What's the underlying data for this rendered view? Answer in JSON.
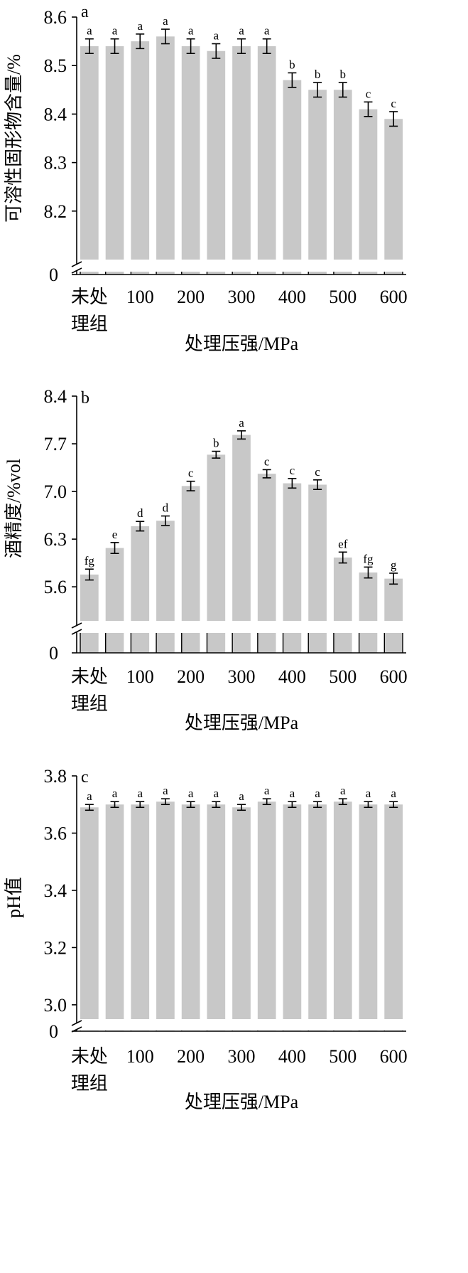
{
  "chart_data": [
    {
      "type": "bar",
      "panel_letter": "a",
      "categories": [
        "未处理组",
        "",
        "100",
        "",
        "200",
        "",
        "300",
        "",
        "400",
        "",
        "500",
        "",
        "600"
      ],
      "category_label_lines": [
        [
          "未处",
          "理组"
        ],
        [],
        [
          "100"
        ],
        [],
        [
          "200"
        ],
        [],
        [
          "300"
        ],
        [],
        [
          "400"
        ],
        [],
        [
          "500"
        ],
        [],
        [
          "600"
        ]
      ],
      "values": [
        8.54,
        8.54,
        8.55,
        8.56,
        8.54,
        8.53,
        8.54,
        8.54,
        8.47,
        8.45,
        8.45,
        8.41,
        8.39
      ],
      "errors": [
        0.015,
        0.015,
        0.015,
        0.015,
        0.015,
        0.015,
        0.015,
        0.015,
        0.015,
        0.015,
        0.015,
        0.015,
        0.015
      ],
      "significance": [
        "a",
        "a",
        "a",
        "a",
        "a",
        "a",
        "a",
        "a",
        "b",
        "b",
        "b",
        "c",
        "c"
      ],
      "xlabel": "处理压强/MPa",
      "ylabel": "可溶性固形物含量/%",
      "ylim": [
        8.1,
        8.6
      ],
      "yticks": [
        "8.6",
        "8.5",
        "8.4",
        "8.3",
        "8.2"
      ],
      "ytick_values": [
        8.6,
        8.5,
        8.4,
        8.3,
        8.2
      ],
      "broken_axis_zero_label": "0",
      "colors": {
        "bar": "#c8c8c8",
        "gap": "#ffffff"
      }
    },
    {
      "type": "bar",
      "panel_letter": "b",
      "categories": [
        "未处理组",
        "",
        "100",
        "",
        "200",
        "",
        "300",
        "",
        "400",
        "",
        "500",
        "",
        "600"
      ],
      "category_label_lines": [
        [
          "未处",
          "理组"
        ],
        [],
        [
          "100"
        ],
        [],
        [
          "200"
        ],
        [],
        [
          "300"
        ],
        [],
        [
          "400"
        ],
        [],
        [
          "500"
        ],
        [],
        [
          "600"
        ]
      ],
      "values": [
        5.78,
        6.17,
        6.49,
        6.57,
        7.08,
        7.54,
        7.83,
        7.26,
        7.12,
        7.1,
        6.03,
        5.81,
        5.72
      ],
      "errors": [
        0.08,
        0.08,
        0.07,
        0.07,
        0.07,
        0.05,
        0.06,
        0.06,
        0.07,
        0.07,
        0.08,
        0.08,
        0.08
      ],
      "significance": [
        "fg",
        "e",
        "d",
        "d",
        "c",
        "b",
        "a",
        "c",
        "c",
        "c",
        "ef",
        "fg",
        "g"
      ],
      "xlabel": "处理压强/MPa",
      "ylabel": "酒精度/%vol",
      "ylim": [
        5.1,
        8.4
      ],
      "yticks": [
        "8.4",
        "7.7",
        "7.0",
        "6.3",
        "5.6"
      ],
      "ytick_values": [
        8.4,
        7.7,
        7.0,
        6.3,
        5.6
      ],
      "broken_axis_zero_label": "0",
      "colors": {
        "bar": "#c8c8c8",
        "gap": "#ffffff"
      }
    },
    {
      "type": "bar",
      "panel_letter": "c",
      "categories": [
        "未处理组",
        "",
        "100",
        "",
        "200",
        "",
        "300",
        "",
        "400",
        "",
        "500",
        "",
        "600"
      ],
      "category_label_lines": [
        [
          "未处",
          "理组"
        ],
        [],
        [
          "100"
        ],
        [],
        [
          "200"
        ],
        [],
        [
          "300"
        ],
        [],
        [
          "400"
        ],
        [],
        [
          "500"
        ],
        [],
        [
          "600"
        ]
      ],
      "values": [
        3.69,
        3.7,
        3.7,
        3.71,
        3.7,
        3.7,
        3.69,
        3.71,
        3.7,
        3.7,
        3.71,
        3.7,
        3.7
      ],
      "errors": [
        0.01,
        0.01,
        0.01,
        0.01,
        0.01,
        0.01,
        0.01,
        0.01,
        0.01,
        0.01,
        0.01,
        0.01,
        0.01
      ],
      "significance": [
        "a",
        "a",
        "a",
        "a",
        "a",
        "a",
        "a",
        "a",
        "a",
        "a",
        "a",
        "a",
        "a"
      ],
      "xlabel": "处理压强/MPa",
      "ylabel": "pH值",
      "ylim": [
        2.95,
        3.8
      ],
      "yticks": [
        "3.8",
        "3.6",
        "3.4",
        "3.2",
        "3.0"
      ],
      "ytick_values": [
        3.8,
        3.6,
        3.4,
        3.2,
        3.0
      ],
      "broken_axis_zero_label": "0",
      "colors": {
        "bar": "#c8c8c8",
        "gap": "#ffffff"
      }
    }
  ]
}
